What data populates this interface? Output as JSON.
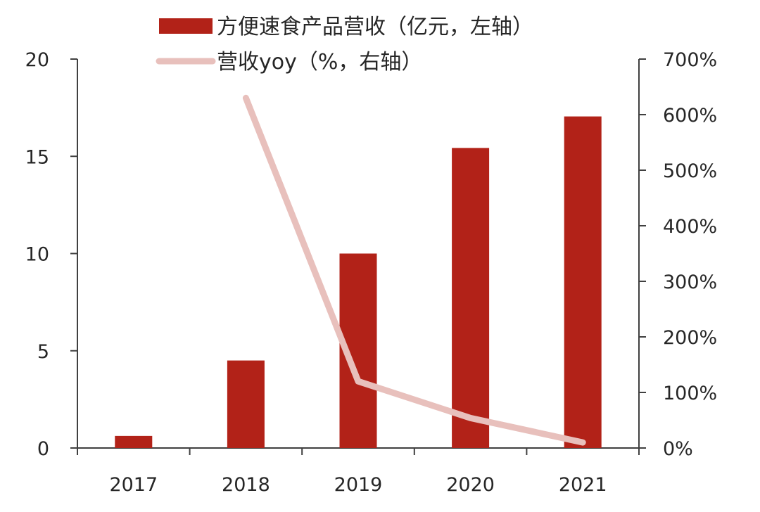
{
  "chart_data": {
    "type": "bar",
    "categories": [
      "2017",
      "2018",
      "2019",
      "2020",
      "2021"
    ],
    "series": [
      {
        "name": "方便速食产品营收（亿元，左轴）",
        "type": "bar",
        "axis": "left",
        "values": [
          0.62,
          4.5,
          10.0,
          15.43,
          17.05
        ],
        "color": "#b22218"
      },
      {
        "name": "营收yoy（%，右轴）",
        "type": "line",
        "axis": "right",
        "values": [
          null,
          630,
          120,
          54,
          10
        ],
        "color": "#e8c0bc"
      }
    ],
    "y_left": {
      "min": 0,
      "max": 20,
      "ticks": [
        "0",
        "5",
        "10",
        "15",
        "20"
      ]
    },
    "y_right": {
      "min": 0,
      "max": 700,
      "ticks": [
        "0%",
        "100%",
        "200%",
        "300%",
        "400%",
        "500%",
        "600%",
        "700%"
      ]
    },
    "legend_position": "top",
    "grid": false
  }
}
